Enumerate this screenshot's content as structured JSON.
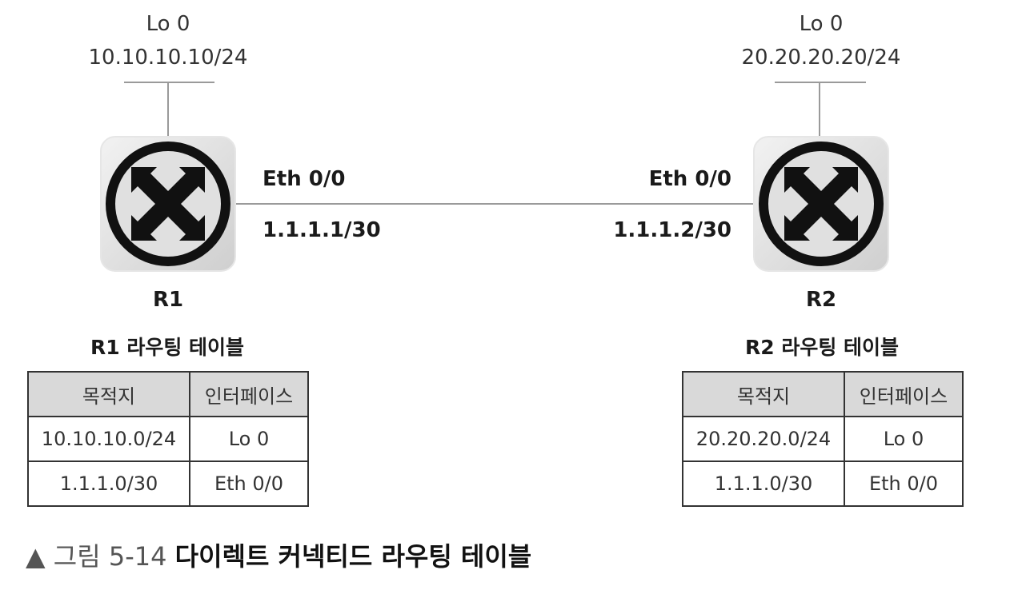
{
  "r1": {
    "lo_name": "Lo 0",
    "lo_ip": "10.10.10.10/24",
    "eth_name": "Eth 0/0",
    "eth_ip": "1.1.1.1/30",
    "name": "R1"
  },
  "r2": {
    "lo_name": "Lo 0",
    "lo_ip": "20.20.20.20/24",
    "eth_name": "Eth 0/0",
    "eth_ip": "1.1.1.2/30",
    "name": "R2"
  },
  "r1_table": {
    "title": "R1 라우팅 테이블",
    "headers": [
      "목적지",
      "인터페이스"
    ],
    "rows": [
      [
        "10.10.10.0/24",
        "Lo 0"
      ],
      [
        "1.1.1.0/30",
        "Eth 0/0"
      ]
    ]
  },
  "r2_table": {
    "title": "R2 라우팅 테이블",
    "headers": [
      "목적지",
      "인터페이스"
    ],
    "rows": [
      [
        "20.20.20.0/24",
        "Lo 0"
      ],
      [
        "1.1.1.0/30",
        "Eth 0/0"
      ]
    ]
  },
  "caption": {
    "marker": "▲",
    "figure_number": "그림 5-14",
    "title": "다이렉트 커넥티드 라우팅 테이블"
  },
  "icons": {
    "router": "router-icon",
    "marker": "triangle-up-icon"
  },
  "colors": {
    "line": "#9a9a9a",
    "router_bg": "#dcdcdc",
    "router_glyph": "#111111",
    "table_header_bg": "#d9d9d9"
  }
}
